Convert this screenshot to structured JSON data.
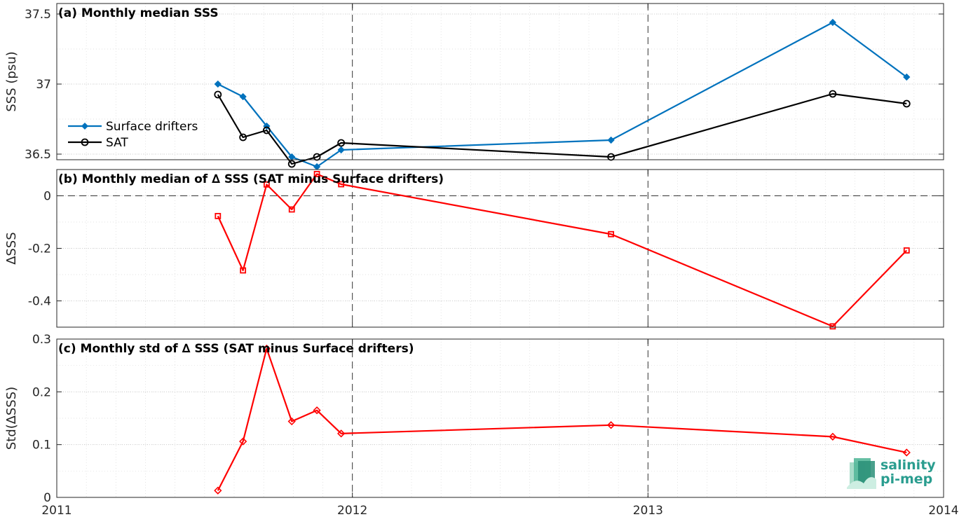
{
  "chart_data": [
    {
      "type": "line",
      "title": "(a) Monthly median SSS",
      "ylabel": "SSS (psu)",
      "xlabel": "",
      "x_range": [
        2011.0,
        2014.0
      ],
      "ylim": [
        36.46,
        37.575
      ],
      "y_ticks": [
        36.5,
        37,
        37.5
      ],
      "y_tick_labels": [
        "36.5",
        "37",
        "37.5"
      ],
      "grid": true,
      "legend_position": "left",
      "x": [
        2011.545,
        2011.63,
        2011.71,
        2011.795,
        2011.88,
        2011.962,
        2012.875,
        2013.625,
        2013.875
      ],
      "series": [
        {
          "name": "Surface drifters",
          "color": "#0072BD",
          "marker": "diamond",
          "values": [
            37.0,
            36.91,
            36.7,
            36.48,
            36.41,
            36.53,
            36.6,
            37.44,
            37.05
          ]
        },
        {
          "name": "SAT",
          "color": "#000000",
          "marker": "circle",
          "values": [
            36.925,
            36.62,
            36.67,
            36.43,
            36.48,
            36.58,
            36.48,
            36.93,
            36.86
          ]
        }
      ]
    },
    {
      "type": "line",
      "title": "(b) Monthly median of ∆ SSS (SAT minus Surface drifters)",
      "ylabel": "∆SSS",
      "xlabel": "",
      "x_range": [
        2011.0,
        2014.0
      ],
      "ylim": [
        -0.5,
        0.1
      ],
      "y_ticks": [
        -0.4,
        -0.2,
        0
      ],
      "y_tick_labels": [
        "-0.4",
        "-0.2",
        "0"
      ],
      "grid": true,
      "x": [
        2011.545,
        2011.63,
        2011.71,
        2011.795,
        2011.88,
        2011.962,
        2012.875,
        2013.625,
        2013.875
      ],
      "series": [
        {
          "color": "#FF0000",
          "marker": "square",
          "values": [
            -0.077,
            -0.284,
            0.043,
            -0.052,
            0.083,
            0.044,
            -0.146,
            -0.497,
            -0.208
          ]
        }
      ]
    },
    {
      "type": "line",
      "title": "(c) Monthly std of ∆ SSS (SAT minus Surface drifters)",
      "ylabel": "Std(∆SSS)",
      "xlabel": "",
      "x_range": [
        2011.0,
        2014.0
      ],
      "x_ticks": [
        2011,
        2012,
        2013,
        2014
      ],
      "x_tick_labels": [
        "2011",
        "2012",
        "2013",
        "2014"
      ],
      "ylim": [
        0,
        0.3
      ],
      "y_ticks": [
        0,
        0.1,
        0.2,
        0.3
      ],
      "y_tick_labels": [
        "0",
        "0.1",
        "0.2",
        "0.3"
      ],
      "grid": true,
      "x": [
        2011.545,
        2011.63,
        2011.71,
        2011.795,
        2011.88,
        2011.962,
        2012.875,
        2013.625,
        2013.875
      ],
      "series": [
        {
          "color": "#FF0000",
          "marker": "diamond",
          "values": [
            0.013,
            0.106,
            0.282,
            0.144,
            0.165,
            0.121,
            0.137,
            0.115,
            0.085
          ]
        }
      ]
    }
  ],
  "logo": {
    "line1": "salinity",
    "line2": "pi-mep",
    "color": "#2a9d8f"
  }
}
